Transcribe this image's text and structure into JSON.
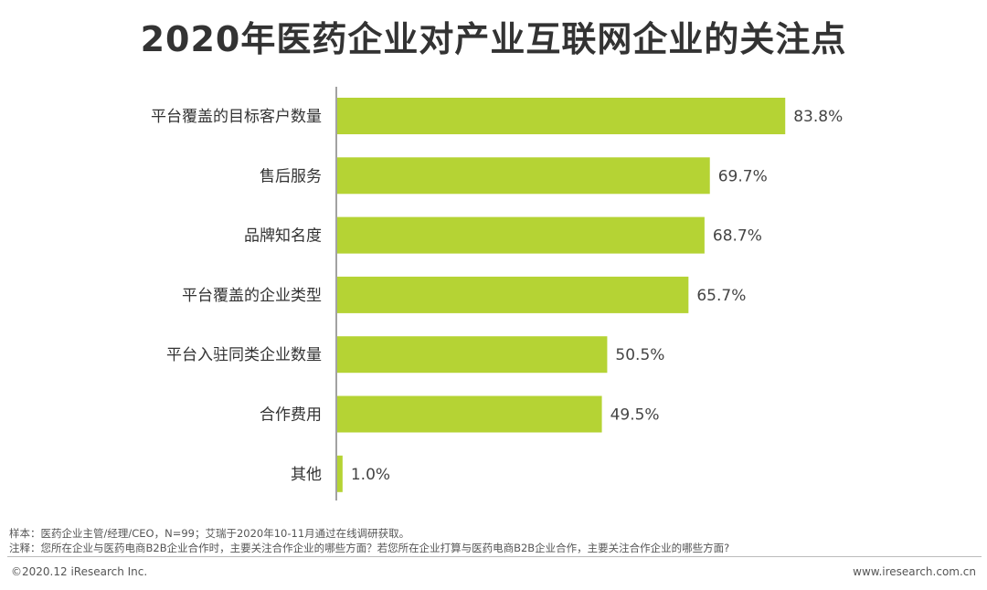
{
  "title": "2020年医药企业对产业互联网企业的关注点",
  "chart_data": {
    "type": "bar",
    "orientation": "horizontal",
    "title": "2020年医药企业对产业互联网企业的关注点",
    "categories": [
      "平台覆盖的目标客户数量",
      "售后服务",
      "品牌知名度",
      "平台覆盖的企业类型",
      "平台入驻同类企业数量",
      "合作费用",
      "其他"
    ],
    "values": [
      83.8,
      69.7,
      68.7,
      65.7,
      50.5,
      49.5,
      1.0
    ],
    "value_labels": [
      "83.8%",
      "69.7%",
      "68.7%",
      "65.7%",
      "50.5%",
      "49.5%",
      "1.0%"
    ],
    "unit": "%",
    "xlabel": "",
    "ylabel": "",
    "xlim": [
      0,
      100
    ],
    "grid": false,
    "bar_color": "#b5d334"
  },
  "footer": {
    "sample": "样本：医药企业主管/经理/CEO，N=99；艾瑞于2020年10-11月通过在线调研获取。",
    "note": "注释：您所在企业与医药电商B2B企业合作时，主要关注合作企业的哪些方面？若您所在企业打算与医药电商B2B企业合作，主要关注合作企业的哪些方面?",
    "copyright": "©2020.12 iResearch Inc.",
    "website": "www.iresearch.com.cn"
  }
}
